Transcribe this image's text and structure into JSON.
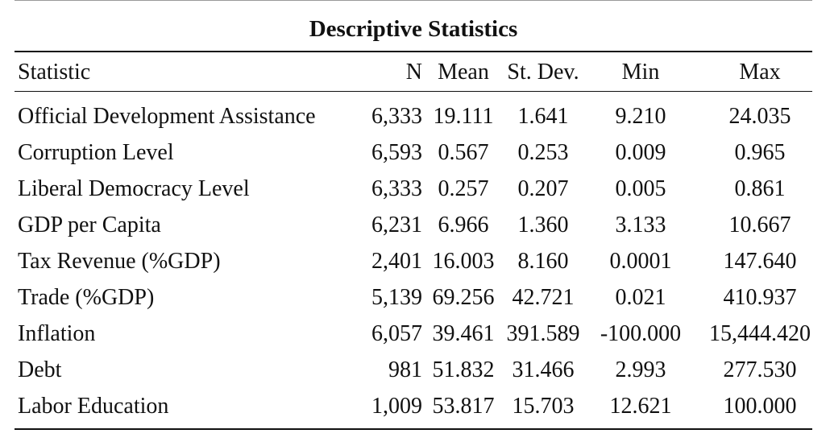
{
  "table": {
    "title": "Descriptive Statistics",
    "headers": {
      "statistic": "Statistic",
      "n": "N",
      "mean": "Mean",
      "sd": "St. Dev.",
      "min": "Min",
      "max": "Max"
    },
    "rows": [
      {
        "label": "Official Development Assistance",
        "n": "6,333",
        "mean": "19.111",
        "sd": "1.641",
        "min": "9.210",
        "max": "24.035"
      },
      {
        "label": "Corruption Level",
        "n": "6,593",
        "mean": "0.567",
        "sd": "0.253",
        "min": "0.009",
        "max": "0.965"
      },
      {
        "label": "Liberal Democracy Level",
        "n": "6,333",
        "mean": "0.257",
        "sd": "0.207",
        "min": "0.005",
        "max": "0.861"
      },
      {
        "label": "GDP per Capita",
        "n": "6,231",
        "mean": "6.966",
        "sd": "1.360",
        "min": "3.133",
        "max": "10.667"
      },
      {
        "label": "Tax Revenue (%GDP)",
        "n": "2,401",
        "mean": "16.003",
        "sd": "8.160",
        "min": "0.0001",
        "max": "147.640"
      },
      {
        "label": "Trade (%GDP)",
        "n": "5,139",
        "mean": "69.256",
        "sd": "42.721",
        "min": "0.021",
        "max": "410.937"
      },
      {
        "label": "Inflation",
        "n": "6,057",
        "mean": "39.461",
        "sd": "391.589",
        "min": "-100.000",
        "max": "15,444.420"
      },
      {
        "label": "Debt",
        "n": "981",
        "mean": "51.832",
        "sd": "31.466",
        "min": "2.993",
        "max": "277.530"
      },
      {
        "label": "Labor Education",
        "n": "1,009",
        "mean": "53.817",
        "sd": "15.703",
        "min": "12.621",
        "max": "100.000"
      }
    ]
  }
}
